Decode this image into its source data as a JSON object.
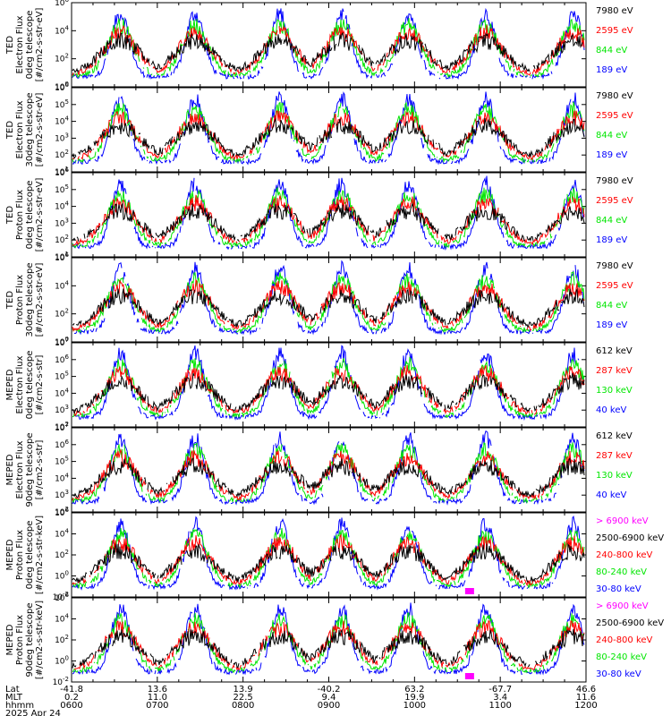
{
  "colors": {
    "blue": "#0000ff",
    "red": "#ff0000",
    "green": "#00e600",
    "black": "#000000",
    "magenta": "#ff00ff"
  },
  "chart_data": {
    "type": "line",
    "date": "2025 Apr 24",
    "xaxis": {
      "rows": [
        {
          "label": "Lat",
          "values": [
            "-41.8",
            "13.6",
            "13.9",
            "-40.2",
            "63.2",
            "-67.7",
            "46.6"
          ]
        },
        {
          "label": "MLT",
          "values": [
            "0.2",
            "11.0",
            "22.5",
            "9.4",
            "19.9",
            "3.4",
            "11.6"
          ]
        },
        {
          "label": "hhmm",
          "values": [
            "0600",
            "0700",
            "0800",
            "0900",
            "1000",
            "1100",
            "1200"
          ]
        }
      ]
    },
    "panels": [
      {
        "ylabel": [
          "TED",
          "Electron Flux",
          "0deg telescope",
          "[#/cm2-s-str-eV]"
        ],
        "ytick_exponents": [
          0,
          2,
          4,
          6
        ],
        "legend": [
          "7980 eV",
          "2595 eV",
          "844 eV",
          "189 eV"
        ],
        "legend_colors": [
          "black",
          "red",
          "green",
          "blue"
        ]
      },
      {
        "ylabel": [
          "TED",
          "Electron Flux",
          "30deg telescope",
          "[#/cm2-s-str-eV]"
        ],
        "ytick_exponents": [
          1,
          2,
          3,
          4,
          5,
          6
        ],
        "legend": [
          "7980 eV",
          "2595 eV",
          "844 eV",
          "189 eV"
        ],
        "legend_colors": [
          "black",
          "red",
          "green",
          "blue"
        ]
      },
      {
        "ylabel": [
          "TED",
          "Proton Flux",
          "0deg telescope",
          "[#/cm2-s-str-eV]"
        ],
        "ytick_exponents": [
          1,
          2,
          3,
          4,
          5,
          6
        ],
        "legend": [
          "7980 eV",
          "2595 eV",
          "844 eV",
          "189 eV"
        ],
        "legend_colors": [
          "black",
          "red",
          "green",
          "blue"
        ]
      },
      {
        "ylabel": [
          "TED",
          "Proton Flux",
          "30deg telescope",
          "[#/cm2-s-str-eV]"
        ],
        "ytick_exponents": [
          0,
          2,
          4,
          6
        ],
        "legend": [
          "7980 eV",
          "2595 eV",
          "844 eV",
          "189 eV"
        ],
        "legend_colors": [
          "black",
          "red",
          "green",
          "blue"
        ]
      },
      {
        "ylabel": [
          "MEPED",
          "Electron Flux",
          "0deg telescope",
          "[#/cm2-s-str]"
        ],
        "ytick_exponents": [
          2,
          3,
          4,
          5,
          6,
          7
        ],
        "legend": [
          "612 keV",
          "287 keV",
          "130 keV",
          "40 keV"
        ],
        "legend_colors": [
          "black",
          "red",
          "green",
          "blue"
        ]
      },
      {
        "ylabel": [
          "MEPED",
          "Electron Flux",
          "90deg telescope",
          "[#/cm2-s-str]"
        ],
        "ytick_exponents": [
          2,
          3,
          4,
          5,
          6,
          7
        ],
        "legend": [
          "612 keV",
          "287 keV",
          "130 keV",
          "40 keV"
        ],
        "legend_colors": [
          "black",
          "red",
          "green",
          "blue"
        ]
      },
      {
        "ylabel": [
          "MEPED",
          "Proton Flux",
          "0deg telescope",
          "[#/cm2-s-str-keV]"
        ],
        "ytick_exponents": [
          -2,
          0,
          2,
          4,
          6
        ],
        "legend": [
          "> 6900 keV",
          "2500-6900 keV",
          "240-800 keV",
          "80-240 keV",
          "30-80 keV"
        ],
        "legend_colors": [
          "magenta",
          "black",
          "red",
          "green",
          "blue"
        ]
      },
      {
        "ylabel": [
          "MEPED",
          "Proton Flux",
          "90deg telescope",
          "[#/cm2-s-str-keV]"
        ],
        "ytick_exponents": [
          -2,
          0,
          2,
          4,
          6
        ],
        "legend": [
          "> 6900 keV",
          "2500-6900 keV",
          "240-800 keV",
          "80-240 keV",
          "30-80 keV"
        ],
        "legend_colors": [
          "magenta",
          "black",
          "red",
          "green",
          "blue"
        ]
      }
    ]
  }
}
